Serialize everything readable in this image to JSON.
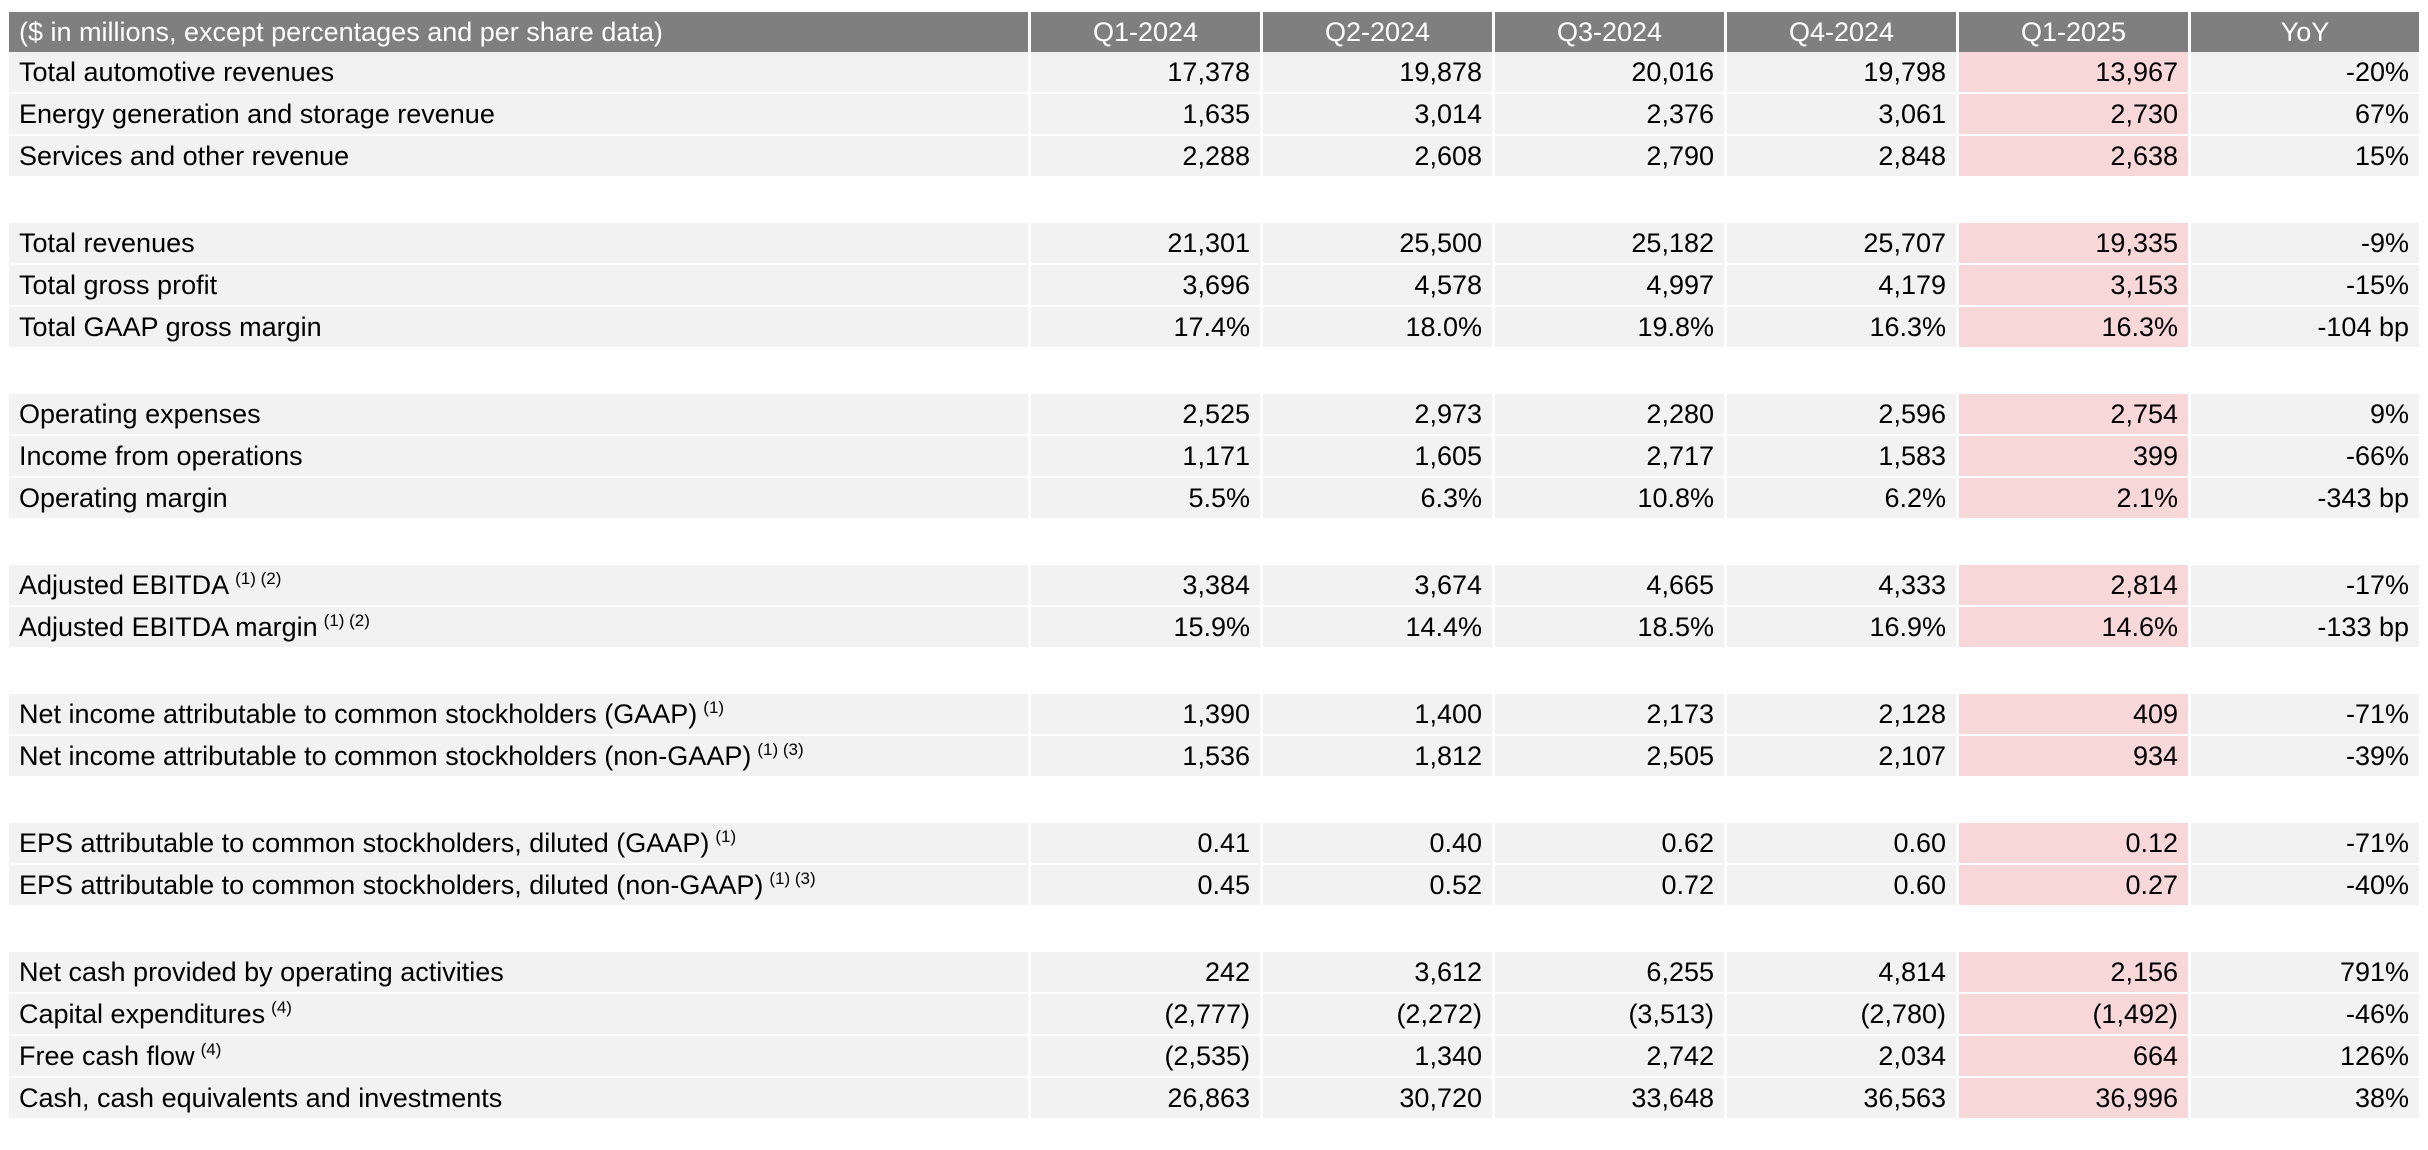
{
  "table": {
    "header": {
      "label": "($ in millions, except percentages and per share data)",
      "columns": [
        "Q1-2024",
        "Q2-2024",
        "Q3-2024",
        "Q4-2024",
        "Q1-2025",
        "YoY"
      ]
    },
    "highlight_color": "#f8d7d9",
    "groups": [
      {
        "rows": [
          {
            "label": "Total automotive revenues",
            "footnote": "",
            "values": [
              "17,378",
              "19,878",
              "20,016",
              "19,798",
              "13,967",
              "-20%"
            ]
          },
          {
            "label": "Energy generation and storage revenue",
            "footnote": "",
            "values": [
              "1,635",
              "3,014",
              "2,376",
              "3,061",
              "2,730",
              "67%"
            ]
          },
          {
            "label": "Services and other revenue",
            "footnote": "",
            "values": [
              "2,288",
              "2,608",
              "2,790",
              "2,848",
              "2,638",
              "15%"
            ]
          }
        ]
      },
      {
        "rows": [
          {
            "label": "Total revenues",
            "footnote": "",
            "values": [
              "21,301",
              "25,500",
              "25,182",
              "25,707",
              "19,335",
              "-9%"
            ]
          },
          {
            "label": "Total gross profit",
            "footnote": "",
            "values": [
              "3,696",
              "4,578",
              "4,997",
              "4,179",
              "3,153",
              "-15%"
            ]
          },
          {
            "label": "Total GAAP gross margin",
            "footnote": "",
            "values": [
              "17.4%",
              "18.0%",
              "19.8%",
              "16.3%",
              "16.3%",
              "-104 bp"
            ]
          }
        ]
      },
      {
        "rows": [
          {
            "label": "Operating expenses",
            "footnote": "",
            "values": [
              "2,525",
              "2,973",
              "2,280",
              "2,596",
              "2,754",
              "9%"
            ]
          },
          {
            "label": "Income from operations",
            "footnote": "",
            "values": [
              "1,171",
              "1,605",
              "2,717",
              "1,583",
              "399",
              "-66%"
            ]
          },
          {
            "label": "Operating margin",
            "footnote": "",
            "values": [
              "5.5%",
              "6.3%",
              "10.8%",
              "6.2%",
              "2.1%",
              "-343 bp"
            ]
          }
        ]
      },
      {
        "rows": [
          {
            "label": "Adjusted EBITDA",
            "footnote": "(1) (2)",
            "values": [
              "3,384",
              "3,674",
              "4,665",
              "4,333",
              "2,814",
              "-17%"
            ]
          },
          {
            "label": "Adjusted EBITDA margin",
            "footnote": "(1) (2)",
            "values": [
              "15.9%",
              "14.4%",
              "18.5%",
              "16.9%",
              "14.6%",
              "-133 bp"
            ]
          }
        ]
      },
      {
        "rows": [
          {
            "label": "Net income attributable to common stockholders (GAAP)",
            "footnote": "(1)",
            "values": [
              "1,390",
              "1,400",
              "2,173",
              "2,128",
              "409",
              "-71%"
            ]
          },
          {
            "label": "Net income attributable to common stockholders (non-GAAP)",
            "footnote": "(1) (3)",
            "values": [
              "1,536",
              "1,812",
              "2,505",
              "2,107",
              "934",
              "-39%"
            ]
          }
        ]
      },
      {
        "rows": [
          {
            "label": "EPS attributable to common stockholders, diluted (GAAP)",
            "footnote": "(1)",
            "values": [
              "0.41",
              "0.40",
              "0.62",
              "0.60",
              "0.12",
              "-71%"
            ]
          },
          {
            "label": "EPS attributable to common stockholders, diluted (non-GAAP)",
            "footnote": "(1) (3)",
            "values": [
              "0.45",
              "0.52",
              "0.72",
              "0.60",
              "0.27",
              "-40%"
            ]
          }
        ]
      },
      {
        "rows": [
          {
            "label": "Net cash provided by operating activities",
            "footnote": "",
            "values": [
              "242",
              "3,612",
              "6,255",
              "4,814",
              "2,156",
              "791%"
            ]
          },
          {
            "label": "Capital expenditures",
            "footnote": "(4)",
            "values": [
              "(2,777)",
              "(2,272)",
              "(3,513)",
              "(2,780)",
              "(1,492)",
              "-46%"
            ]
          },
          {
            "label": "Free cash flow",
            "footnote": "(4)",
            "values": [
              "(2,535)",
              "1,340",
              "2,742",
              "2,034",
              "664",
              "126%"
            ]
          },
          {
            "label": "Cash, cash equivalents and investments",
            "footnote": "",
            "values": [
              "26,863",
              "30,720",
              "33,648",
              "36,563",
              "36,996",
              "38%"
            ]
          }
        ]
      }
    ]
  }
}
